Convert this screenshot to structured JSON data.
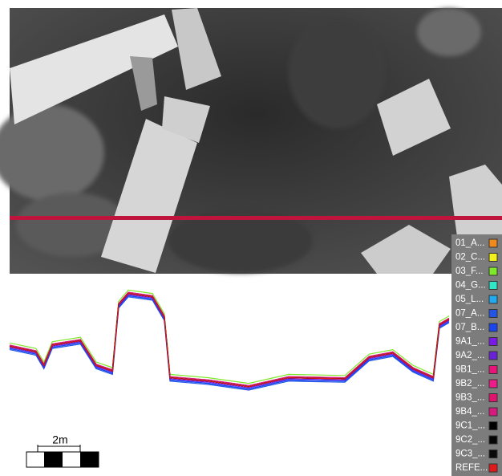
{
  "chart_data": {
    "type": "line",
    "x": [
      0,
      6,
      7.8,
      9.7,
      16.1,
      19.7,
      23.4,
      24.8,
      27,
      32.5,
      35.2,
      36.5,
      45.3,
      54.4,
      63.5,
      76.3,
      81.8,
      87.2,
      91.8,
      96.4,
      97.8,
      100
    ],
    "xlim": [
      0,
      100
    ],
    "ylim": [
      0,
      100
    ],
    "series": [
      {
        "name": "01_A...",
        "color": "#f08a1c",
        "values": [
          49,
          44,
          32,
          50,
          54,
          32,
          27,
          86,
          96,
          93,
          75,
          21,
          18,
          13,
          21,
          20,
          39,
          43,
          29,
          21,
          68,
          73
        ]
      },
      {
        "name": "02_C...",
        "color": "#f2f21a",
        "values": [
          50,
          45,
          33,
          51,
          55,
          33,
          28,
          87,
          97,
          94,
          76,
          22,
          19,
          14,
          22,
          21,
          40,
          44,
          30,
          22,
          69,
          74
        ]
      },
      {
        "name": "03_F...",
        "color": "#7ee82a",
        "values": [
          52,
          47,
          35,
          53,
          57,
          35,
          30,
          89,
          99,
          96,
          78,
          24,
          21,
          16,
          24,
          23,
          42,
          46,
          32,
          24,
          71,
          76
        ]
      },
      {
        "name": "04_G...",
        "color": "#2ee6c8",
        "values": [
          49,
          44,
          32,
          50,
          54,
          32,
          27,
          86,
          96,
          93,
          75,
          21,
          18,
          13,
          21,
          20,
          39,
          43,
          29,
          21,
          68,
          73
        ]
      },
      {
        "name": "05_L...",
        "color": "#22aaf0",
        "values": [
          47,
          42,
          30,
          48,
          52,
          30,
          25,
          84,
          94,
          91,
          73,
          19,
          16,
          11,
          19,
          18,
          37,
          41,
          27,
          19,
          66,
          71
        ]
      },
      {
        "name": "07_A...",
        "color": "#2255e6",
        "values": [
          46,
          41,
          29,
          47,
          51,
          29,
          24,
          83,
          93,
          90,
          72,
          18,
          15,
          10,
          18,
          17,
          36,
          40,
          26,
          18,
          65,
          70
        ]
      },
      {
        "name": "07_B...",
        "color": "#1a44f0",
        "values": [
          47,
          42,
          30,
          48,
          52,
          30,
          25,
          84,
          94,
          91,
          73,
          19,
          16,
          11,
          19,
          18,
          37,
          41,
          27,
          19,
          66,
          71
        ]
      },
      {
        "name": "9A1_...",
        "color": "#7a1ae6",
        "values": [
          48,
          43,
          31,
          49,
          53,
          31,
          26,
          85,
          95,
          92,
          74,
          20,
          17,
          12,
          20,
          19,
          38,
          42,
          28,
          20,
          67,
          72
        ]
      },
      {
        "name": "9A2_...",
        "color": "#6a22d8",
        "values": [
          49,
          44,
          32,
          50,
          54,
          32,
          27,
          86,
          96,
          93,
          75,
          21,
          18,
          13,
          21,
          20,
          39,
          43,
          29,
          21,
          68,
          73
        ]
      },
      {
        "name": "9B1_...",
        "color": "#e8147a",
        "values": [
          49,
          44,
          32,
          50,
          54,
          32,
          27,
          86,
          96,
          93,
          75,
          21,
          18,
          13,
          21,
          20,
          39,
          43,
          29,
          21,
          68,
          73
        ]
      },
      {
        "name": "9B2_...",
        "color": "#f01a8a",
        "values": [
          50,
          45,
          33,
          51,
          55,
          33,
          28,
          87,
          97,
          94,
          76,
          22,
          19,
          14,
          22,
          21,
          40,
          44,
          30,
          22,
          69,
          74
        ]
      },
      {
        "name": "9B3_...",
        "color": "#e0146e",
        "values": [
          49,
          44,
          32,
          50,
          54,
          32,
          27,
          86,
          96,
          93,
          75,
          21,
          18,
          13,
          21,
          20,
          39,
          43,
          29,
          21,
          68,
          73
        ]
      },
      {
        "name": "9B4_...",
        "color": "#d81a80",
        "values": [
          50,
          45,
          33,
          51,
          55,
          33,
          28,
          87,
          97,
          94,
          76,
          22,
          19,
          14,
          22,
          21,
          40,
          44,
          30,
          22,
          69,
          74
        ]
      },
      {
        "name": "9C1_...",
        "color": "#000000",
        "values": [
          49,
          44,
          32,
          50,
          54,
          32,
          27,
          86,
          96,
          93,
          75,
          21,
          18,
          13,
          21,
          20,
          39,
          43,
          29,
          21,
          68,
          73
        ]
      },
      {
        "name": "9C2_...",
        "color": "#050505",
        "values": [
          49,
          44,
          32,
          50,
          54,
          32,
          27,
          86,
          96,
          93,
          75,
          21,
          18,
          13,
          21,
          20,
          39,
          43,
          29,
          21,
          68,
          73
        ]
      },
      {
        "name": "9C3_...",
        "color": "#0a0a0a",
        "values": [
          49,
          44,
          32,
          50,
          54,
          32,
          27,
          86,
          96,
          93,
          75,
          21,
          18,
          13,
          21,
          20,
          39,
          43,
          29,
          21,
          68,
          73
        ]
      },
      {
        "name": "REFE...",
        "color": "#e01a1a",
        "values": [
          49,
          44,
          32,
          50,
          54,
          32,
          27,
          86,
          96,
          93,
          75,
          21,
          18,
          13,
          21,
          20,
          39,
          43,
          29,
          21,
          68,
          73
        ]
      }
    ]
  },
  "scale_bar": {
    "label": "2m"
  }
}
